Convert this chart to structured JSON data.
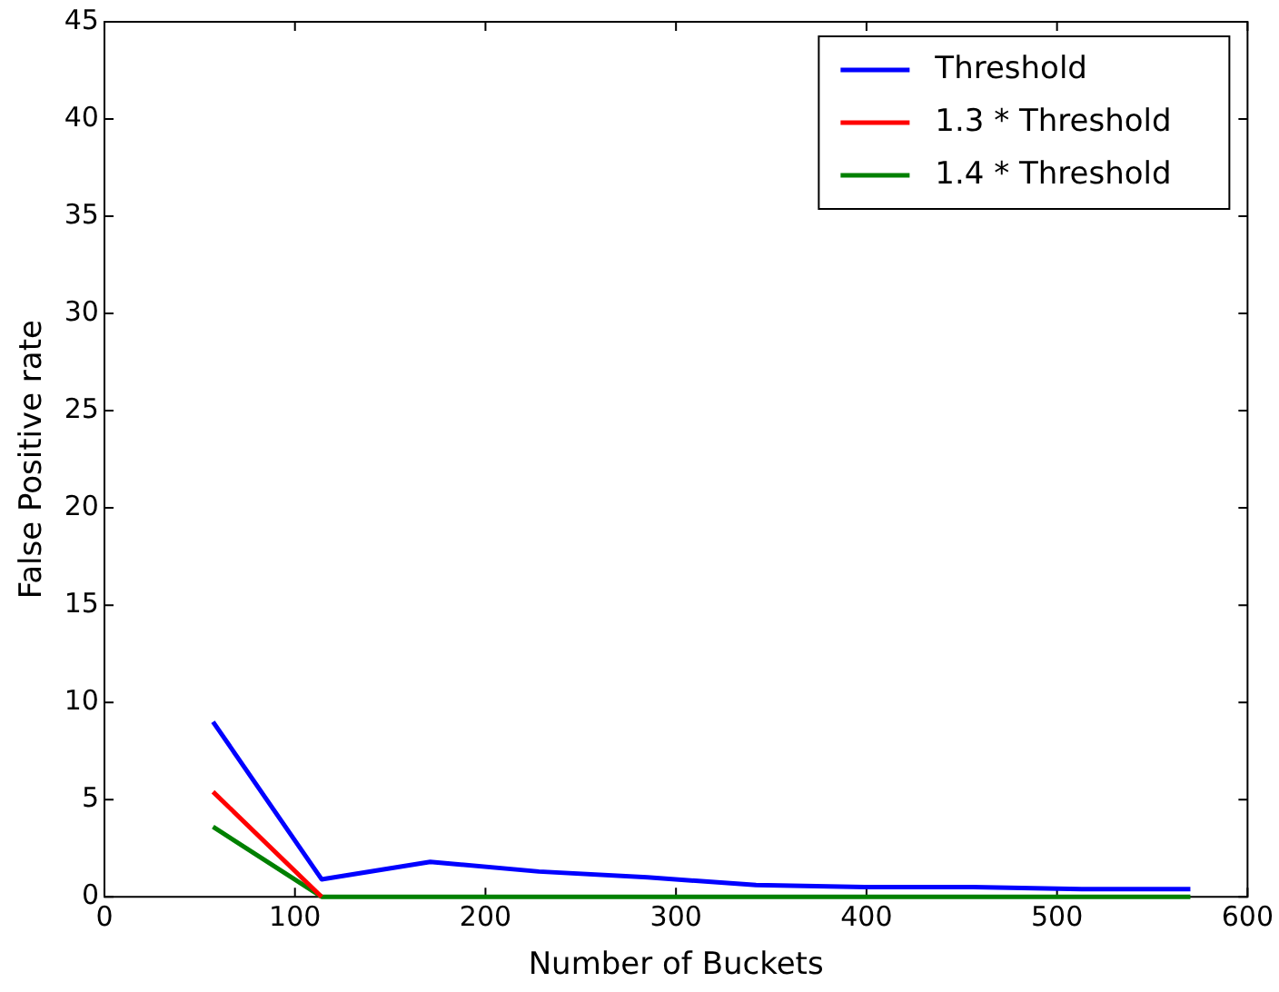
{
  "chart_data": {
    "type": "line",
    "xlabel": "Number of Buckets",
    "ylabel": "False Positive rate",
    "x": [
      57,
      114,
      171,
      228,
      285,
      342,
      399,
      456,
      513,
      570
    ],
    "series": [
      {
        "name": "Threshold",
        "color": "#0000ff",
        "values": [
          9.0,
          0.9,
          1.8,
          1.3,
          1.0,
          0.6,
          0.5,
          0.5,
          0.4,
          0.4
        ]
      },
      {
        "name": "1.3 * Threshold",
        "color": "#ff0000",
        "values": [
          5.4,
          0,
          null,
          null,
          null,
          null,
          null,
          null,
          null,
          null
        ]
      },
      {
        "name": "1.4 * Threshold",
        "color": "#008000",
        "values": [
          3.6,
          0,
          0,
          0,
          0,
          0,
          0,
          0,
          0,
          0
        ]
      }
    ],
    "xlim": [
      0,
      600
    ],
    "xticks": [
      0,
      100,
      200,
      300,
      400,
      500,
      600
    ],
    "ylim": [
      0,
      45
    ],
    "yticks": [
      0,
      5,
      10,
      15,
      20,
      25,
      30,
      35,
      40,
      45
    ],
    "grid": false,
    "legend": "top right",
    "marker": "none",
    "line_style": "solid"
  }
}
